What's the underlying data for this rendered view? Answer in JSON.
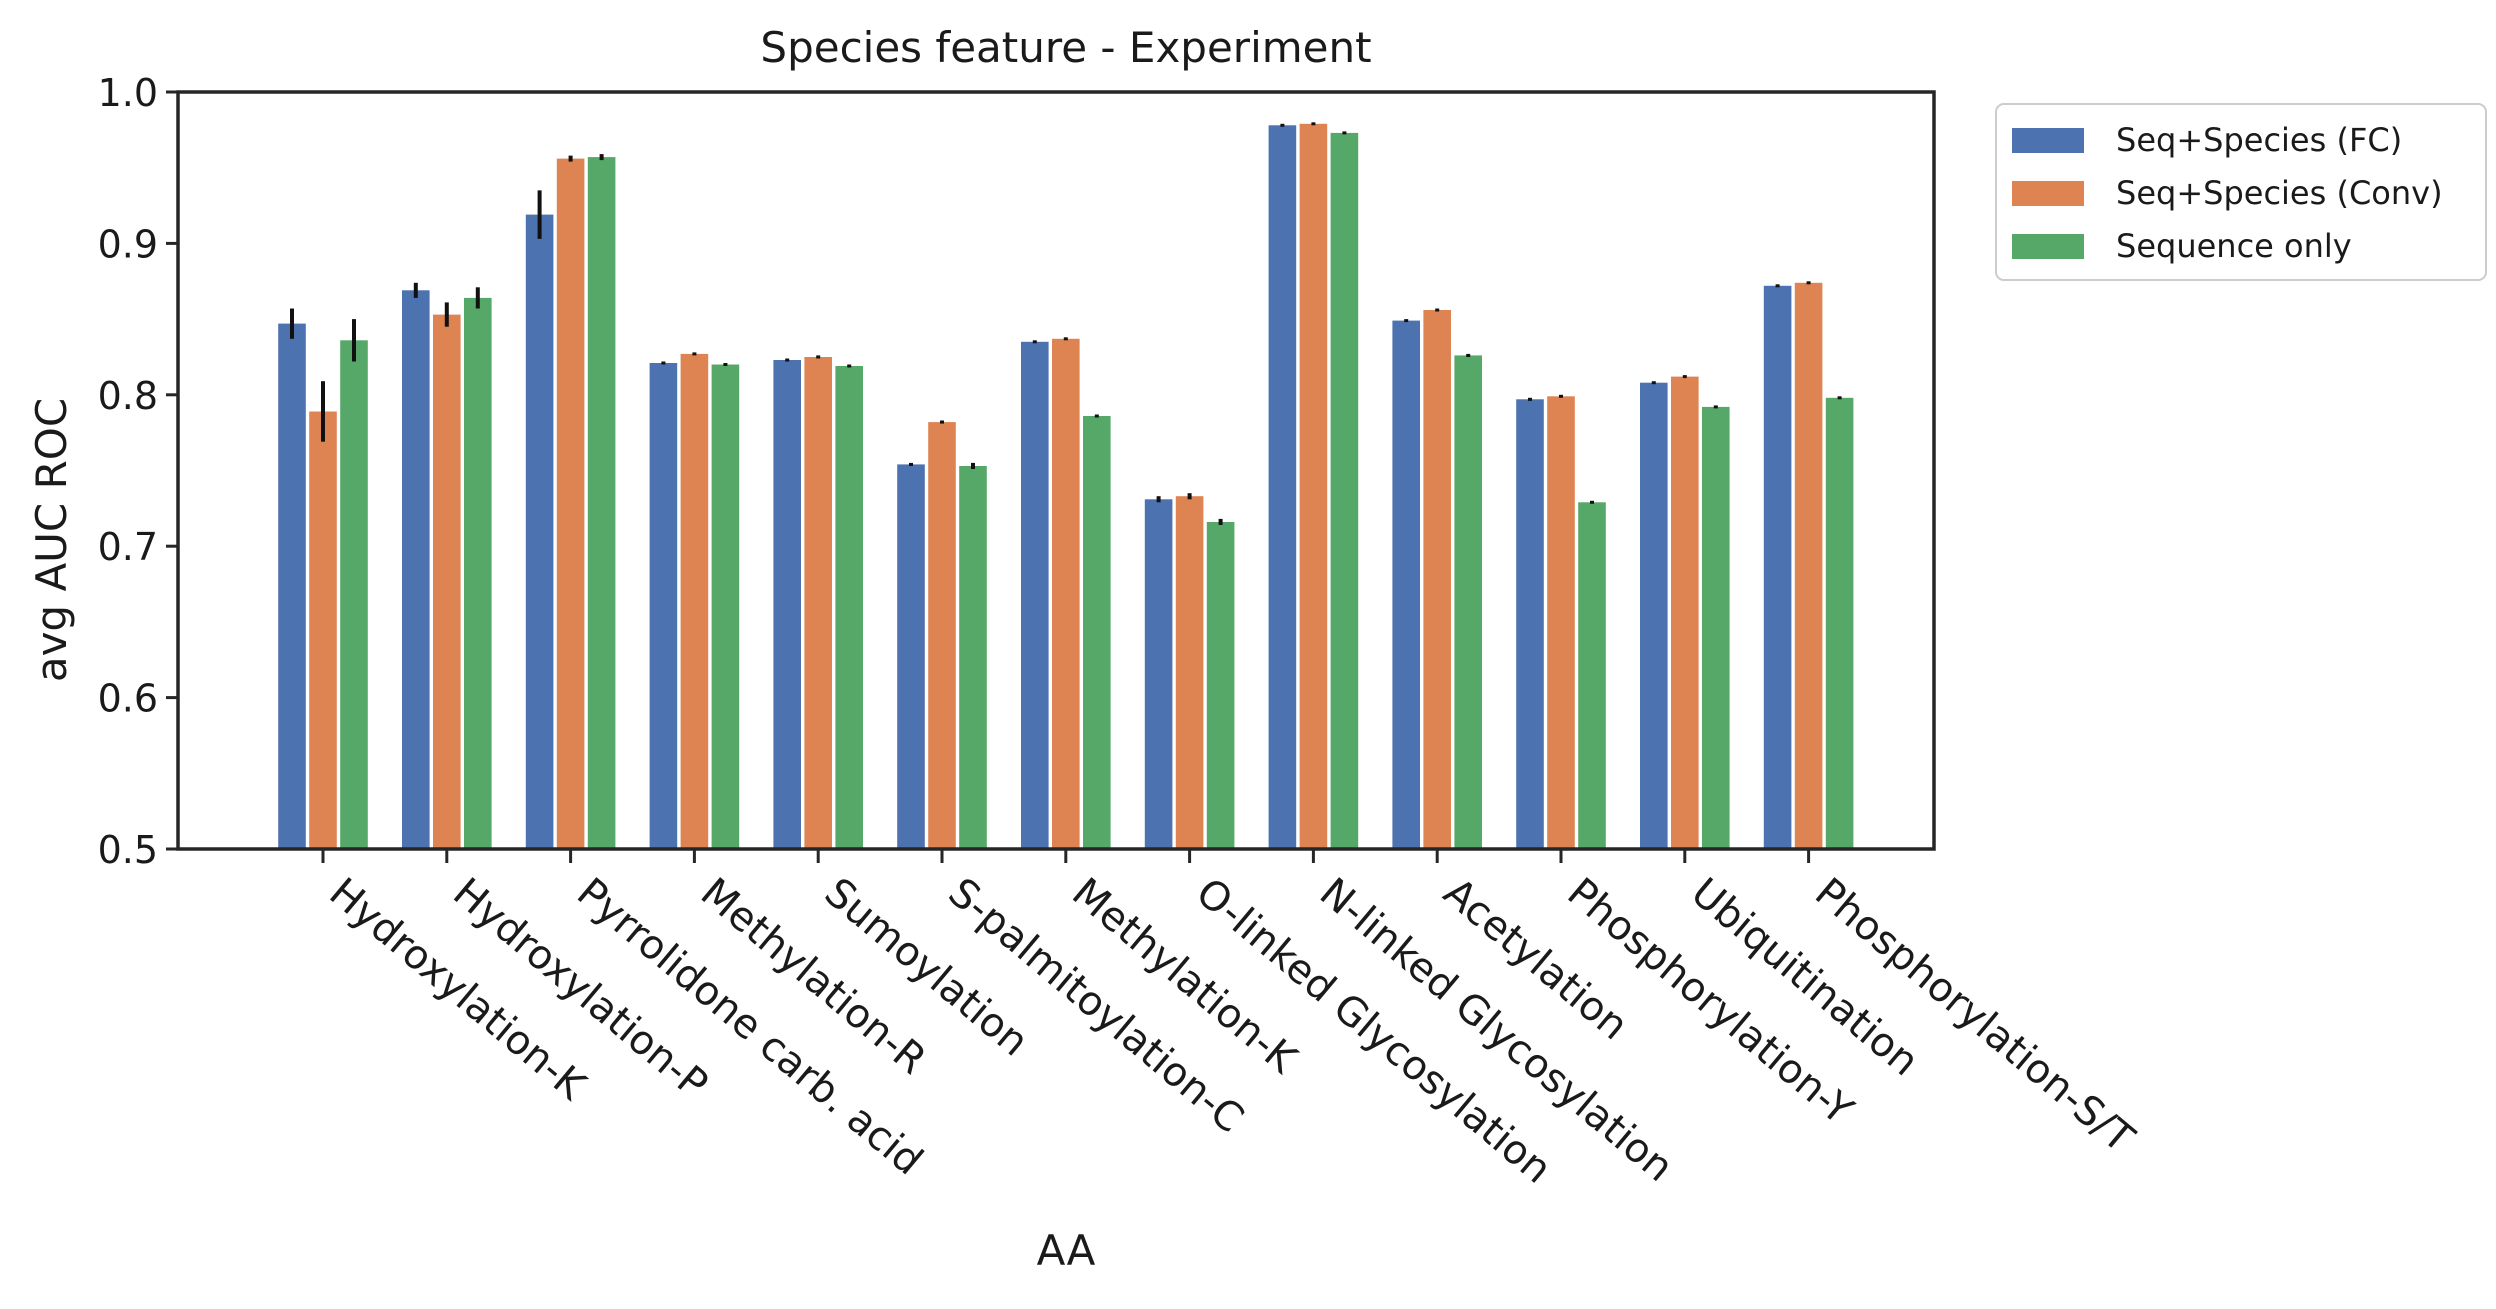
{
  "chart_data": {
    "type": "bar",
    "title": "Species feature - Experiment",
    "xlabel": "AA",
    "ylabel": "avg AUC ROC",
    "ylim": [
      0.5,
      1.0
    ],
    "yticks": [
      "0.5",
      "0.6",
      "0.7",
      "0.8",
      "0.9",
      "1.0"
    ],
    "grid": false,
    "legend_position": "outside top-right",
    "categories": [
      "Hydroxylation-K",
      "Hydroxylation-P",
      "Pyrrolidone carb. acid",
      "Methylation-R",
      "Sumoylation",
      "S-palmitoylation-C",
      "Methylation-K",
      "O-linked Glycosylation",
      "N-linked Glycosylation",
      "Acetylation",
      "Phosphorylation-Y",
      "Ubiquitination",
      "Phosphorylation-S/T"
    ],
    "series": [
      {
        "name": "Seq+Species (FC)",
        "color": "#4c72b0",
        "values": [
          0.847,
          0.869,
          0.919,
          0.821,
          0.823,
          0.754,
          0.835,
          0.731,
          0.978,
          0.849,
          0.797,
          0.808,
          0.872
        ],
        "errors": [
          0.01,
          0.005,
          0.016,
          0.001,
          0.001,
          0.001,
          0.001,
          0.002,
          0.001,
          0.001,
          0.001,
          0.001,
          0.001
        ]
      },
      {
        "name": "Seq+Species (Conv)",
        "color": "#dd8452",
        "values": [
          0.789,
          0.853,
          0.956,
          0.827,
          0.825,
          0.782,
          0.837,
          0.733,
          0.979,
          0.856,
          0.799,
          0.812,
          0.874
        ],
        "errors": [
          0.02,
          0.008,
          0.002,
          0.001,
          0.001,
          0.001,
          0.001,
          0.002,
          0.001,
          0.001,
          0.001,
          0.001,
          0.001
        ]
      },
      {
        "name": "Sequence only",
        "color": "#55a868",
        "values": [
          0.836,
          0.864,
          0.957,
          0.82,
          0.819,
          0.753,
          0.786,
          0.716,
          0.973,
          0.826,
          0.729,
          0.792,
          0.798
        ],
        "errors": [
          0.014,
          0.007,
          0.002,
          0.001,
          0.001,
          0.002,
          0.001,
          0.002,
          0.001,
          0.001,
          0.001,
          0.001,
          0.001
        ]
      }
    ]
  }
}
